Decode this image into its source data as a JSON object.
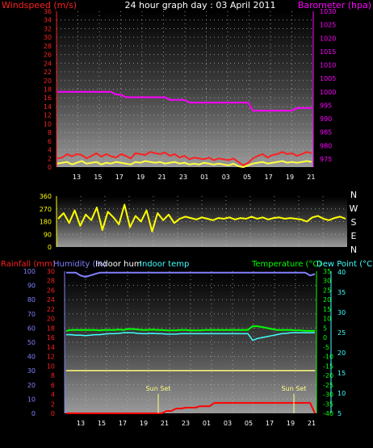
{
  "colors": {
    "windspeed": "#ff2020",
    "gust": "#ffff40",
    "barometer": "#ff00ff",
    "wind_dir": "#ffff00",
    "rainfall": "#ff0000",
    "humidity": "#8080ff",
    "indoor_hum": "#ffffff",
    "indoor_temp": "#40ffff",
    "temperature": "#00ff00",
    "dew_point": "#40ffff",
    "sunset": "#ffff80",
    "label_red": "#ff2020",
    "label_magenta": "#ff00ff",
    "label_green": "#00ff00",
    "label_cyan": "#40ffff",
    "label_blue": "#8080ff",
    "label_white": "#ffffff"
  },
  "chart_data": [
    {
      "type": "line",
      "title": "24 hour graph day : 03 April 2011",
      "x_ticks": [
        "13",
        "15",
        "17",
        "19",
        "21",
        "23",
        "01",
        "03",
        "05",
        "17",
        "19",
        "21"
      ],
      "left_axis": {
        "label": "Windspeed (m/s)",
        "ticks": [
          0,
          2,
          4,
          6,
          8,
          10,
          12,
          14,
          16,
          18,
          20,
          22,
          24,
          26,
          28,
          30,
          32,
          34,
          36
        ],
        "ylim": [
          0,
          36
        ]
      },
      "right_axis": {
        "label": "Barometer (hpa)",
        "ticks": [
          975,
          980,
          985,
          990,
          995,
          1000,
          1005,
          1010,
          1015,
          1020,
          1025,
          1030
        ],
        "ylim": [
          972,
          1030
        ]
      },
      "grid": true,
      "series": [
        {
          "name": "Barometer (hpa)",
          "axis": "right",
          "values": [
            1000,
            1000,
            1000,
            1000,
            1000,
            1000,
            1000,
            1000,
            1000,
            1000,
            1000,
            1000,
            999,
            999,
            998,
            998,
            998,
            998,
            998,
            998,
            998,
            998,
            998,
            997,
            997,
            997,
            997,
            996,
            996,
            996,
            996,
            996,
            996,
            996,
            996,
            996,
            996,
            996,
            996,
            996,
            993,
            993,
            993,
            993,
            993,
            993,
            993,
            993,
            993,
            994,
            994,
            994,
            994
          ]
        },
        {
          "name": "Windspeed (m/s)",
          "axis": "left",
          "values": [
            2.0,
            2.2,
            3.0,
            2.5,
            3.0,
            2.8,
            2.0,
            2.6,
            3.2,
            2.4,
            3.0,
            2.5,
            2.2,
            3.0,
            2.6,
            2.0,
            3.2,
            3.0,
            2.8,
            3.5,
            3.2,
            3.0,
            3.4,
            2.6,
            3.0,
            2.2,
            2.6,
            1.8,
            2.2,
            2.0,
            1.8,
            2.2,
            1.6,
            2.0,
            1.8,
            1.6,
            2.0,
            1.2,
            0.4,
            1.0,
            2.0,
            2.6,
            3.0,
            2.2,
            2.8,
            3.0,
            3.5,
            3.0,
            3.2,
            2.6,
            3.0,
            3.5,
            3.2
          ]
        },
        {
          "name": "Gust (m/s)",
          "axis": "left",
          "values": [
            0.8,
            1.0,
            1.2,
            0.6,
            1.0,
            1.4,
            0.8,
            1.0,
            1.2,
            0.6,
            1.0,
            0.8,
            1.2,
            1.0,
            0.8,
            0.6,
            1.2,
            1.0,
            1.4,
            1.2,
            1.0,
            1.2,
            0.8,
            1.0,
            1.2,
            0.8,
            1.0,
            0.6,
            0.8,
            0.6,
            1.0,
            0.8,
            0.6,
            0.8,
            0.6,
            0.4,
            0.8,
            0.2,
            0.0,
            0.4,
            0.8,
            1.0,
            1.2,
            0.8,
            1.0,
            1.2,
            1.4,
            1.0,
            1.2,
            1.0,
            1.2,
            1.4,
            1.2
          ]
        }
      ]
    },
    {
      "type": "line",
      "left_axis": {
        "ticks": [
          0,
          90,
          180,
          270,
          360
        ],
        "ylim": [
          0,
          360
        ]
      },
      "right_labels": [
        "N",
        "W",
        "S",
        "E",
        "N"
      ],
      "grid": true,
      "series": [
        {
          "name": "Wind direction",
          "values": [
            200,
            240,
            170,
            260,
            150,
            230,
            190,
            280,
            120,
            250,
            210,
            160,
            300,
            140,
            220,
            180,
            260,
            110,
            240,
            190,
            230,
            170,
            200,
            215,
            205,
            195,
            210,
            200,
            190,
            205,
            200,
            210,
            195,
            205,
            200,
            215,
            200,
            210,
            195,
            205,
            210,
            200,
            205,
            200,
            195,
            180,
            210,
            220,
            200,
            190,
            205,
            215,
            200
          ]
        }
      ]
    },
    {
      "type": "line",
      "left_axis": {
        "labels": [
          "Rainfall (mm)",
          "Humidity (%)"
        ],
        "ticks": [
          0,
          10,
          20,
          30,
          40,
          50,
          60,
          70,
          80,
          90,
          100
        ],
        "rain_ticks": [
          0,
          2,
          4,
          6,
          8,
          10,
          12,
          14,
          16,
          18,
          20,
          22,
          24,
          26,
          28,
          30
        ]
      },
      "indoor_labels": [
        "Indoor hum",
        "Indoor temp"
      ],
      "right_axis_temp": {
        "label": "Temperature (°C)",
        "ticks": [
          35,
          30,
          25,
          20,
          15,
          10,
          5,
          0,
          -5,
          -10,
          -15,
          -20,
          -25,
          -30,
          -35,
          -40
        ]
      },
      "right_axis_dew": {
        "label": "Dew Point (°C)",
        "ticks": [
          40,
          35,
          30,
          25,
          20,
          15,
          10,
          5
        ]
      },
      "annotations": [
        "Sun Set",
        "Sun Set"
      ],
      "grid": true,
      "series": [
        {
          "name": "Humidity (%)",
          "values": [
            99,
            99,
            99,
            97,
            96,
            97,
            98,
            99,
            99,
            99,
            99,
            99,
            99,
            99,
            99,
            99,
            99,
            99,
            99,
            99,
            99,
            99,
            99,
            99,
            99,
            99,
            99,
            99,
            99,
            99,
            99,
            99,
            99,
            99,
            99,
            99,
            99,
            99,
            99,
            99,
            99,
            99,
            99,
            99,
            99,
            99,
            99,
            99,
            99,
            99,
            99,
            97,
            98
          ]
        },
        {
          "name": "Temperature (°C)",
          "values": [
            3.5,
            4,
            4,
            4,
            4,
            4,
            4,
            3.8,
            4,
            4,
            4,
            4.2,
            4,
            4.5,
            4.5,
            4.2,
            4,
            4,
            4.2,
            4,
            4,
            3.8,
            3.8,
            3.8,
            4,
            4,
            3.8,
            3.8,
            3.8,
            4,
            4,
            4,
            4,
            4,
            4,
            4,
            4,
            4,
            4,
            6,
            6,
            5.5,
            5,
            4.5,
            4,
            4,
            4,
            4,
            3.8,
            3.8,
            3.5,
            3.5,
            3.5
          ]
        },
        {
          "name": "Dew Point (°C)",
          "values": [
            1.5,
            1.5,
            1.2,
            1.2,
            1.0,
            1.2,
            1.5,
            1.5,
            1.8,
            2,
            2,
            2.2,
            2.5,
            2.5,
            2.5,
            2.2,
            2,
            2,
            2.2,
            2,
            2,
            1.8,
            1.8,
            1.8,
            2,
            2,
            2,
            2,
            2,
            2,
            2,
            2,
            2,
            2,
            2,
            2,
            2,
            2,
            2,
            -1.5,
            -0.5,
            0,
            0.5,
            1,
            1.5,
            2,
            2.2,
            2.5,
            2.5,
            2.5,
            2.5,
            2.5,
            2.5
          ]
        },
        {
          "name": "Rainfall (mm)",
          "values": [
            0,
            0,
            0,
            0,
            0,
            0,
            0,
            0,
            0,
            0,
            0,
            0,
            0,
            0,
            0,
            0,
            0,
            0,
            0,
            0,
            0,
            0.5,
            0.5,
            1.0,
            1.0,
            1.2,
            1.2,
            1.2,
            1.5,
            1.5,
            1.5,
            2.2,
            2.2,
            2.2,
            2.2,
            2.2,
            2.2,
            2.2,
            2.2,
            2.2,
            2.2,
            2.2,
            2.2,
            2.2,
            2.2,
            2.2,
            2.2,
            2.2,
            2.2,
            2.2,
            2.2,
            2.2,
            0
          ]
        },
        {
          "name": "Indoor hum",
          "values": [
            30,
            30,
            30,
            30,
            30,
            30,
            30,
            30,
            30,
            30,
            30,
            30,
            30,
            30,
            30,
            30,
            30,
            30,
            30,
            30,
            30,
            30,
            30,
            30,
            30,
            30,
            30,
            30,
            30,
            30,
            30,
            30,
            30,
            30,
            30,
            30,
            30,
            30,
            30,
            30,
            30,
            30,
            30,
            30,
            30,
            30,
            30,
            30,
            30,
            30,
            30,
            30,
            30
          ]
        }
      ]
    }
  ]
}
